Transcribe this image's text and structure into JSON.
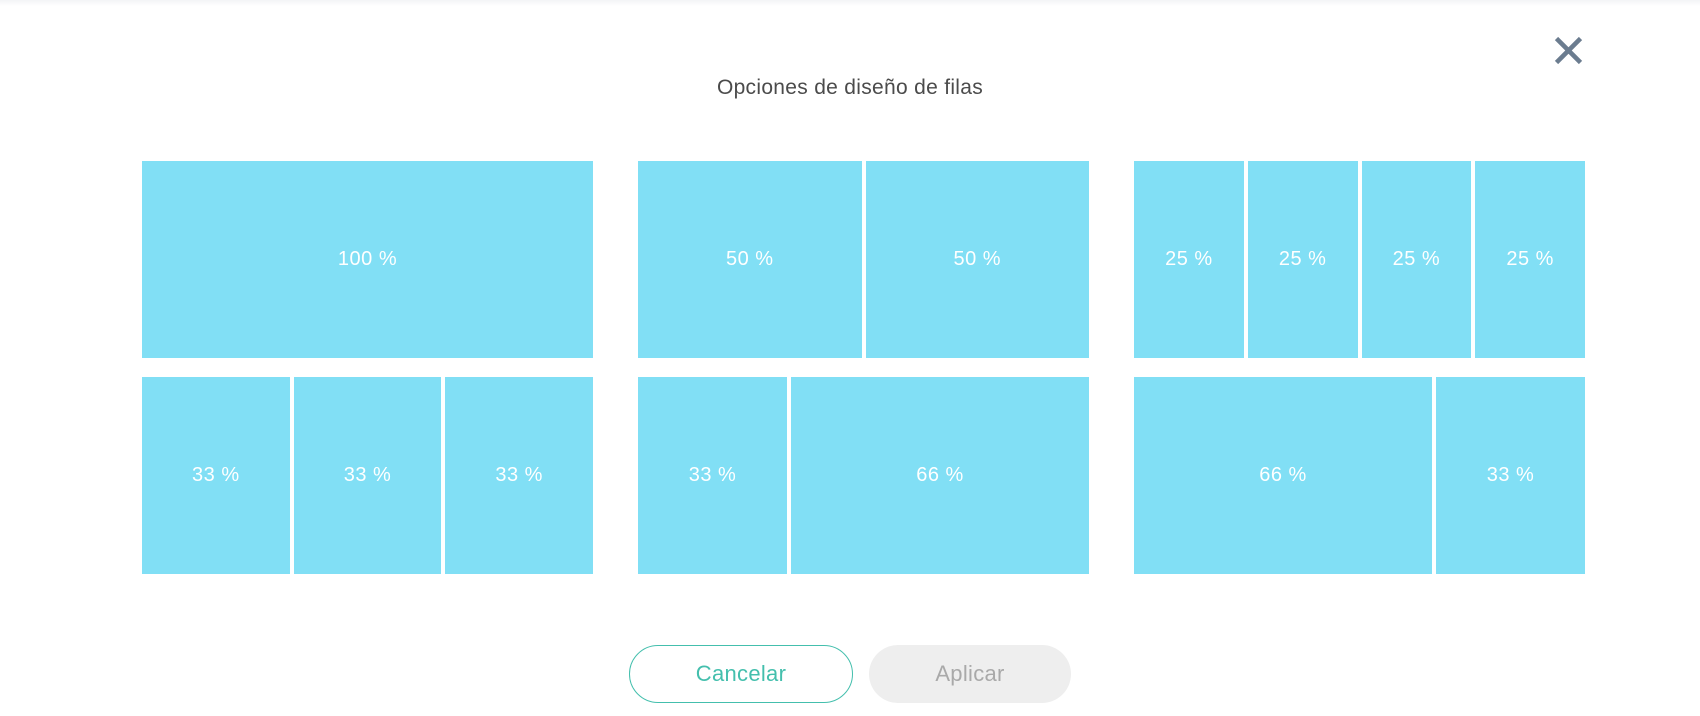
{
  "modal": {
    "title": "Opciones de diseño de filas"
  },
  "icons": {
    "close": "✕"
  },
  "layout_options": [
    {
      "name": "100",
      "columns": [
        {
          "label": "100 %",
          "percent": 100
        }
      ]
    },
    {
      "name": "50-50",
      "columns": [
        {
          "label": "50 %",
          "percent": 50
        },
        {
          "label": "50 %",
          "percent": 50
        }
      ]
    },
    {
      "name": "25-25-25-25",
      "columns": [
        {
          "label": "25 %",
          "percent": 25
        },
        {
          "label": "25 %",
          "percent": 25
        },
        {
          "label": "25 %",
          "percent": 25
        },
        {
          "label": "25 %",
          "percent": 25
        }
      ]
    },
    {
      "name": "33-33-33",
      "columns": [
        {
          "label": "33 %",
          "percent": 33
        },
        {
          "label": "33 %",
          "percent": 33
        },
        {
          "label": "33 %",
          "percent": 33
        }
      ]
    },
    {
      "name": "33-66",
      "columns": [
        {
          "label": "33 %",
          "percent": 33
        },
        {
          "label": "66 %",
          "percent": 66
        }
      ]
    },
    {
      "name": "66-33",
      "columns": [
        {
          "label": "66 %",
          "percent": 66
        },
        {
          "label": "33 %",
          "percent": 33
        }
      ]
    }
  ],
  "buttons": {
    "cancel_label": "Cancelar",
    "apply_label": "Aplicar",
    "apply_enabled": false
  },
  "colors": {
    "block_fill": "#81dff5",
    "block_text": "#ffffff",
    "title_text": "#4b4b4b",
    "close_icon": "#6b7c8f",
    "accent": "#44bfad",
    "disabled_bg": "#eeeeee",
    "disabled_text": "#a9a9a9"
  }
}
